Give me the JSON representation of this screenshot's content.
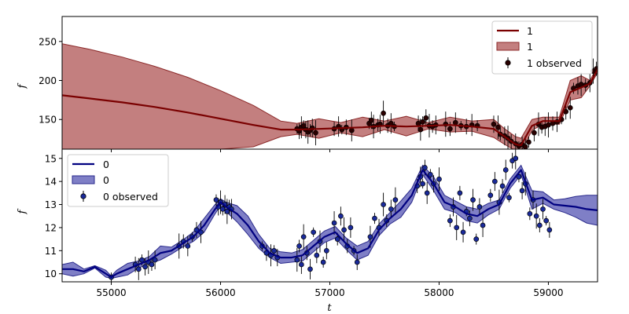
{
  "chart_data": [
    {
      "type": "line",
      "panel": "top",
      "xlabel": "",
      "ylabel": "f",
      "xlim": [
        54550,
        59450
      ],
      "ylim": [
        112,
        282
      ],
      "yticks": [
        150,
        200,
        250
      ],
      "show_xticklabels": false,
      "grid": false,
      "legend_position": "top-right",
      "legend": [
        "1",
        "1",
        "1 observed"
      ],
      "colors": {
        "line": "#7a0000",
        "band": "#a33a3a",
        "band_edge": "#8c2a2a",
        "points": "#2a0000"
      },
      "series": [
        {
          "name": "1",
          "kind": "mean",
          "x": [
            54550,
            54800,
            55100,
            55400,
            55700,
            56000,
            56300,
            56550,
            56700,
            56900,
            57100,
            57300,
            57500,
            57700,
            57900,
            58100,
            58300,
            58500,
            58600,
            58700,
            58750,
            58850,
            58950,
            59100,
            59200,
            59300,
            59380,
            59450
          ],
          "y": [
            181,
            177,
            172,
            166,
            159,
            151,
            143,
            137,
            137,
            138,
            139,
            140,
            142,
            141,
            142,
            143,
            141,
            138,
            128,
            118,
            117,
            142,
            148,
            148,
            185,
            191,
            196,
            214
          ]
        },
        {
          "name": "1",
          "kind": "band",
          "x": [
            54550,
            54800,
            55100,
            55400,
            55700,
            56000,
            56300,
            56550,
            56700,
            56900,
            57100,
            57300,
            57500,
            57700,
            57900,
            58100,
            58300,
            58500,
            58600,
            58700,
            58750,
            58850,
            58950,
            59100,
            59200,
            59300,
            59380,
            59450
          ],
          "upper": [
            247,
            240,
            230,
            218,
            204,
            187,
            168,
            148,
            145,
            151,
            146,
            153,
            148,
            154,
            146,
            153,
            148,
            150,
            138,
            128,
            126,
            150,
            153,
            153,
            200,
            206,
            200,
            218
          ],
          "lower": [
            112,
            112,
            112,
            112,
            112,
            112,
            115,
            128,
            131,
            126,
            133,
            128,
            137,
            129,
            138,
            134,
            135,
            127,
            118,
            110,
            109,
            136,
            144,
            144,
            175,
            178,
            193,
            210
          ]
        },
        {
          "name": "1 observed",
          "kind": "points",
          "x": [
            56700,
            56720,
            56740,
            56760,
            56780,
            56800,
            56820,
            56840,
            56870,
            57040,
            57080,
            57110,
            57150,
            57200,
            57360,
            57380,
            57400,
            57440,
            57460,
            57490,
            57530,
            57560,
            57590,
            57810,
            57830,
            57850,
            57880,
            57910,
            57940,
            57970,
            58060,
            58100,
            58150,
            58200,
            58250,
            58300,
            58350,
            58500,
            58540,
            58560,
            58600,
            58630,
            58660,
            58700,
            58730,
            58760,
            58790,
            58820,
            58870,
            58910,
            58940,
            58970,
            59000,
            59040,
            59080,
            59120,
            59160,
            59200,
            59230,
            59270,
            59300,
            59340,
            59380,
            59410,
            59440
          ],
          "y": [
            138,
            135,
            140,
            142,
            137,
            134,
            136,
            139,
            133,
            138,
            141,
            137,
            140,
            136,
            145,
            149,
            141,
            143,
            144,
            158,
            142,
            145,
            141,
            145,
            137,
            147,
            152,
            142,
            141,
            143,
            144,
            138,
            146,
            142,
            141,
            143,
            142,
            144,
            140,
            131,
            129,
            126,
            122,
            119,
            116,
            118,
            115,
            121,
            133,
            144,
            140,
            141,
            143,
            145,
            147,
            150,
            160,
            165,
            190,
            193,
            195,
            194,
            197,
            212,
            215
          ]
        }
      ]
    },
    {
      "type": "line",
      "panel": "bottom",
      "xlabel": "t",
      "ylabel": "f",
      "xlim": [
        54550,
        59450
      ],
      "ylim": [
        9.65,
        15.4
      ],
      "xticks": [
        55000,
        56000,
        57000,
        58000,
        59000
      ],
      "yticks": [
        10,
        11,
        12,
        13,
        14,
        15
      ],
      "grid": false,
      "legend_position": "top-left",
      "legend": [
        "0",
        "0",
        "0 observed"
      ],
      "colors": {
        "line": "#000080",
        "band": "#3a3aa8",
        "band_edge": "#2a2a8c",
        "points": "#1a2a9a"
      },
      "series": [
        {
          "name": "0",
          "kind": "mean",
          "x": [
            54550,
            54650,
            54750,
            54850,
            54950,
            55000,
            55050,
            55150,
            55250,
            55350,
            55450,
            55550,
            55650,
            55750,
            55850,
            55950,
            56000,
            56050,
            56150,
            56250,
            56350,
            56450,
            56550,
            56650,
            56750,
            56850,
            56950,
            57050,
            57150,
            57250,
            57350,
            57450,
            57550,
            57650,
            57750,
            57850,
            57950,
            58050,
            58150,
            58250,
            58350,
            58450,
            58550,
            58650,
            58750,
            58850,
            58950,
            59050,
            59150,
            59250,
            59350,
            59450
          ],
          "y": [
            10.2,
            10.2,
            10.1,
            10.3,
            10.0,
            9.85,
            10.0,
            10.2,
            10.4,
            10.6,
            10.9,
            11.0,
            11.3,
            11.6,
            12.1,
            12.8,
            13.1,
            12.9,
            12.6,
            12.1,
            11.4,
            10.9,
            10.7,
            10.7,
            10.8,
            11.2,
            11.6,
            11.8,
            11.3,
            10.9,
            11.1,
            11.9,
            12.4,
            12.8,
            13.4,
            14.5,
            13.9,
            13.1,
            12.9,
            12.6,
            12.5,
            12.8,
            13.0,
            13.9,
            14.5,
            13.2,
            13.3,
            13.0,
            12.95,
            12.9,
            12.8,
            12.75
          ]
        },
        {
          "name": "0",
          "kind": "band",
          "x": [
            54550,
            54650,
            54750,
            54850,
            54950,
            55000,
            55050,
            55150,
            55250,
            55350,
            55450,
            55550,
            55650,
            55750,
            55850,
            55950,
            56000,
            56050,
            56150,
            56250,
            56350,
            56450,
            56550,
            56650,
            56750,
            56850,
            56950,
            57050,
            57150,
            57250,
            57350,
            57450,
            57550,
            57650,
            57750,
            57850,
            57950,
            58050,
            58150,
            58250,
            58350,
            58450,
            58550,
            58650,
            58750,
            58850,
            58950,
            59050,
            59150,
            59250,
            59350,
            59450
          ],
          "upper": [
            10.4,
            10.5,
            10.2,
            10.35,
            10.15,
            9.9,
            10.15,
            10.45,
            10.55,
            10.75,
            11.2,
            11.15,
            11.45,
            11.8,
            12.4,
            13.0,
            13.25,
            13.1,
            12.95,
            12.5,
            11.7,
            11.1,
            10.95,
            10.9,
            11.05,
            11.45,
            11.85,
            12.05,
            11.55,
            11.2,
            11.4,
            12.15,
            12.65,
            13.15,
            13.7,
            14.7,
            14.2,
            13.4,
            13.15,
            12.9,
            12.8,
            13.05,
            13.2,
            14.1,
            14.7,
            13.6,
            13.55,
            13.2,
            13.25,
            13.35,
            13.4,
            13.4
          ],
          "lower": [
            10.0,
            9.9,
            10.0,
            10.25,
            9.85,
            9.8,
            9.85,
            9.95,
            10.25,
            10.45,
            10.6,
            10.85,
            11.15,
            11.4,
            11.8,
            12.6,
            12.95,
            12.7,
            12.25,
            11.7,
            11.1,
            10.7,
            10.45,
            10.5,
            10.55,
            10.95,
            11.35,
            11.55,
            11.05,
            10.6,
            10.8,
            11.65,
            12.15,
            12.45,
            13.1,
            14.3,
            13.6,
            12.8,
            12.65,
            12.3,
            12.2,
            12.55,
            12.8,
            13.7,
            14.3,
            12.8,
            13.05,
            12.8,
            12.65,
            12.45,
            12.2,
            12.1
          ]
        },
        {
          "name": "0 observed",
          "kind": "points",
          "x": [
            55000,
            55220,
            55250,
            55280,
            55310,
            55340,
            55370,
            55400,
            55620,
            55660,
            55700,
            55740,
            55780,
            55820,
            55960,
            55980,
            56000,
            56020,
            56040,
            56060,
            56080,
            56100,
            56380,
            56420,
            56460,
            56490,
            56520,
            56700,
            56720,
            56740,
            56760,
            56790,
            56820,
            56850,
            56880,
            56910,
            56940,
            56970,
            57040,
            57070,
            57100,
            57130,
            57160,
            57190,
            57220,
            57250,
            57370,
            57410,
            57450,
            57490,
            57520,
            57560,
            57600,
            57800,
            57830,
            57850,
            57870,
            57890,
            57920,
            57950,
            58000,
            58100,
            58130,
            58160,
            58190,
            58220,
            58250,
            58280,
            58310,
            58340,
            58370,
            58400,
            58470,
            58510,
            58550,
            58580,
            58610,
            58640,
            58670,
            58700,
            58730,
            58760,
            58790,
            58830,
            58860,
            58890,
            58920,
            58950,
            58980,
            59010
          ],
          "y": [
            9.85,
            10.4,
            10.2,
            10.6,
            10.3,
            10.5,
            10.4,
            10.6,
            11.2,
            11.4,
            11.2,
            11.6,
            11.9,
            11.8,
            13.2,
            12.9,
            13.1,
            12.8,
            13.0,
            12.7,
            12.9,
            12.8,
            11.2,
            10.9,
            10.8,
            11.0,
            10.7,
            10.6,
            11.2,
            10.4,
            11.6,
            10.9,
            10.2,
            11.8,
            10.8,
            11.4,
            10.5,
            11.0,
            12.2,
            11.5,
            12.5,
            11.9,
            11.2,
            12.0,
            11.0,
            10.5,
            11.6,
            12.4,
            12.0,
            13.0,
            12.3,
            12.8,
            13.2,
            13.8,
            14.2,
            13.9,
            14.6,
            13.5,
            14.3,
            13.9,
            14.1,
            12.3,
            12.9,
            12.0,
            13.5,
            11.8,
            12.7,
            12.4,
            13.2,
            11.5,
            12.9,
            12.1,
            13.4,
            14.0,
            13.1,
            13.8,
            14.5,
            13.3,
            14.9,
            15.0,
            14.2,
            13.6,
            13.9,
            12.6,
            13.2,
            12.5,
            12.1,
            12.8,
            12.3,
            11.9
          ]
        }
      ]
    }
  ]
}
